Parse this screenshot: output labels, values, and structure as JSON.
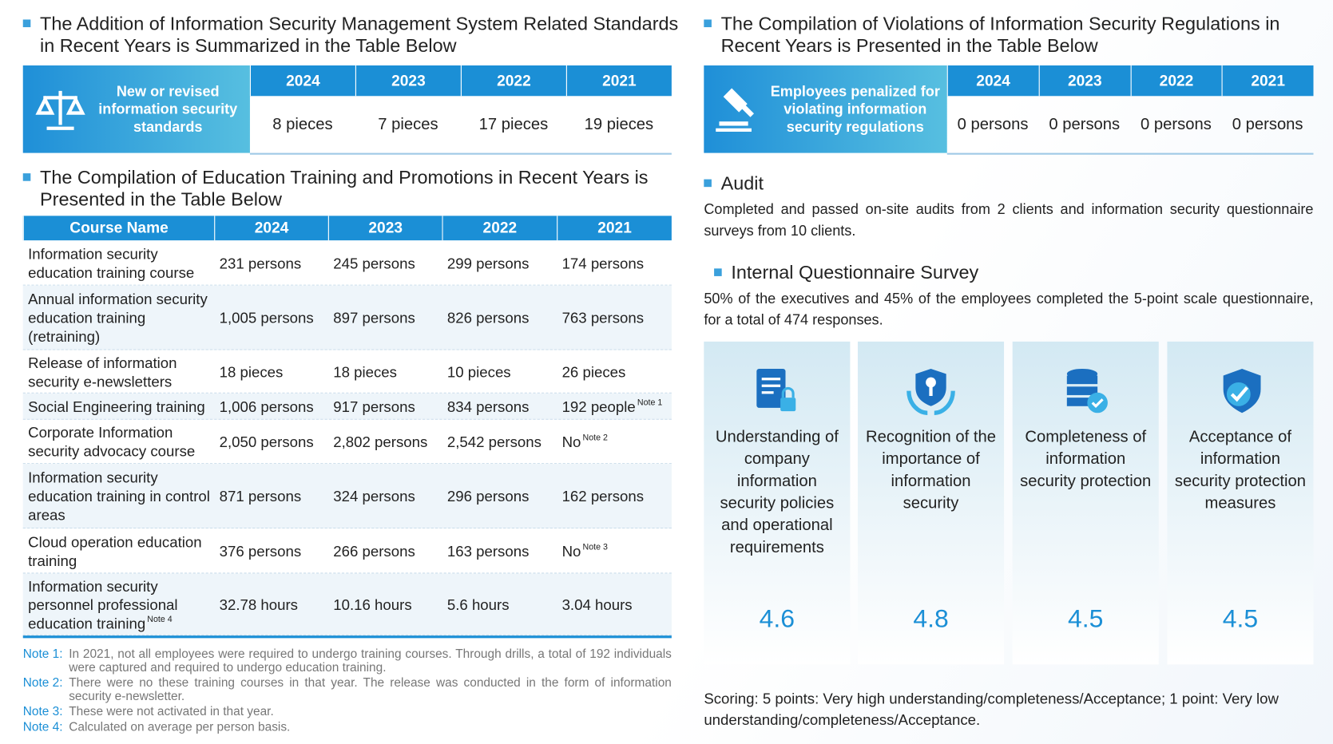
{
  "standards": {
    "title": "The Addition of Information Security Management System Related Standards in Recent Years is Summarized in the Table Below",
    "row_label": "New or revised information security standards",
    "years": [
      "2024",
      "2023",
      "2022",
      "2021"
    ],
    "values": [
      "8 pieces",
      "7 pieces",
      "17 pieces",
      "19 pieces"
    ]
  },
  "violations": {
    "title": "The Compilation of Violations of Information Security Regulations in Recent Years is Presented in the Table Below",
    "row_label": "Employees penalized for violating information security regulations",
    "years": [
      "2024",
      "2023",
      "2022",
      "2021"
    ],
    "values": [
      "0 persons",
      "0 persons",
      "0 persons",
      "0 persons"
    ]
  },
  "training": {
    "title": "The Compilation of Education Training and Promotions in Recent Years is Presented in the Table Below",
    "header": [
      "Course Name",
      "2024",
      "2023",
      "2022",
      "2021"
    ],
    "rows": [
      [
        {
          "text": "Information security education training course"
        },
        {
          "text": "231 persons"
        },
        {
          "text": "245 persons"
        },
        {
          "text": "299 persons"
        },
        {
          "text": "174 persons"
        }
      ],
      [
        {
          "text": "Annual information security education training (retraining)"
        },
        {
          "text": "1,005 persons"
        },
        {
          "text": "897 persons"
        },
        {
          "text": "826 persons"
        },
        {
          "text": "763 persons"
        }
      ],
      [
        {
          "text": "Release of information security e-newsletters"
        },
        {
          "text": "18 pieces"
        },
        {
          "text": "18 pieces"
        },
        {
          "text": "10 pieces"
        },
        {
          "text": "26 pieces"
        }
      ],
      [
        {
          "text": "Social Engineering training"
        },
        {
          "text": "1,006 persons"
        },
        {
          "text": "917 persons"
        },
        {
          "text": "834 persons"
        },
        {
          "text": "192 people",
          "note": "Note 1"
        }
      ],
      [
        {
          "text": "Corporate Information security advocacy course"
        },
        {
          "text": "2,050 persons"
        },
        {
          "text": "2,802 persons"
        },
        {
          "text": "2,542 persons"
        },
        {
          "text": "No",
          "note": "Note 2"
        }
      ],
      [
        {
          "text": "Information security education training in control areas"
        },
        {
          "text": "871 persons"
        },
        {
          "text": "324 persons"
        },
        {
          "text": "296 persons"
        },
        {
          "text": "162 persons"
        }
      ],
      [
        {
          "text": "Cloud operation education training"
        },
        {
          "text": "376 persons"
        },
        {
          "text": "266 persons"
        },
        {
          "text": "163 persons"
        },
        {
          "text": "No",
          "note": "Note 3"
        }
      ],
      [
        {
          "text": "Information security personnel professional education training",
          "note": "Note 4"
        },
        {
          "text": "32.78 hours"
        },
        {
          "text": "10.16 hours"
        },
        {
          "text": "5.6 hours"
        },
        {
          "text": "3.04 hours"
        }
      ]
    ],
    "notes": [
      {
        "label": "Note 1:",
        "text": "In 2021, not all employees were required to undergo training courses. Through drills, a total of 192 individuals were captured and required to undergo education training."
      },
      {
        "label": "Note 2:",
        "text": "There were no these training courses in that year. The release was conducted in the form of information security e-newsletter."
      },
      {
        "label": "Note 3:",
        "text": "These were not activated in that year."
      },
      {
        "label": "Note 4:",
        "text": "Calculated on average per person basis."
      }
    ]
  },
  "audit": {
    "title": "Audit",
    "text": "Completed and passed on-site audits from 2 clients and information security questionnaire surveys from 10 clients."
  },
  "survey": {
    "title": "Internal Questionnaire Survey",
    "text": "50% of the executives and 45% of the employees completed the 5-point scale questionnaire, for a total of 474 responses.",
    "items": [
      {
        "label": "Understanding of company information security policies and operational requirements",
        "score": "4.6"
      },
      {
        "label": "Recognition of the importance of information security",
        "score": "4.8"
      },
      {
        "label": "Completeness of information security protection",
        "score": "4.5"
      },
      {
        "label": "Acceptance of information security protection measures",
        "score": "4.5"
      }
    ],
    "scoring": "Scoring: 5 points: Very high understanding/completeness/Acceptance; 1 point: Very low understanding/completeness/Acceptance."
  }
}
